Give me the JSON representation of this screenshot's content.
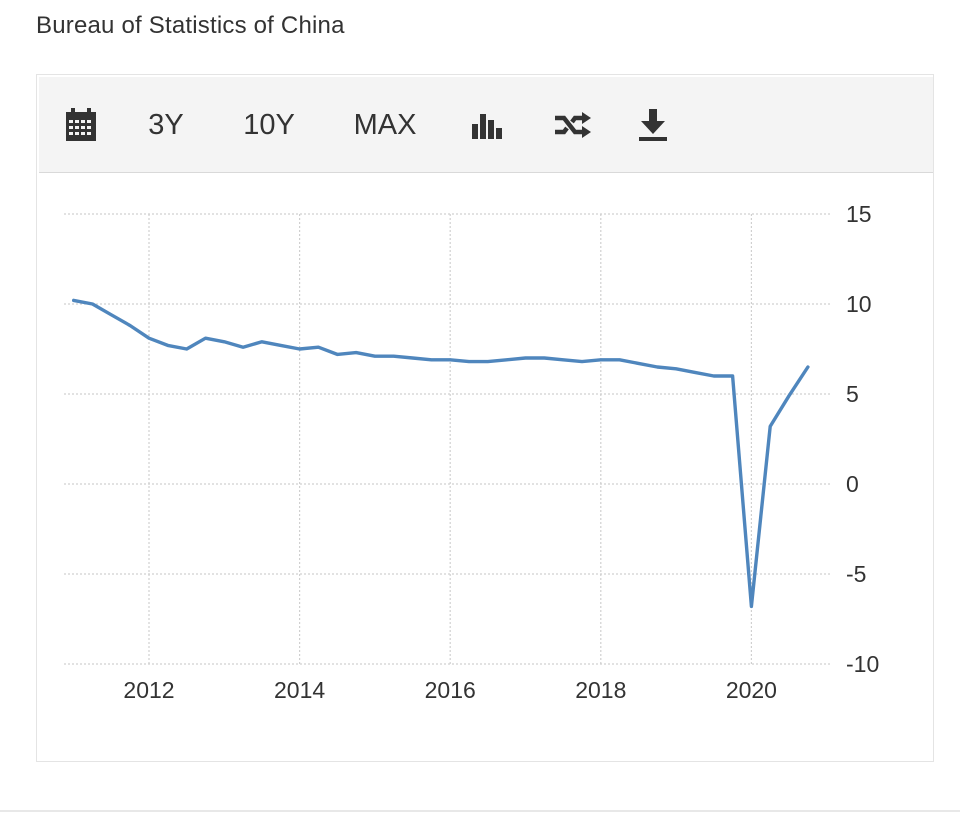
{
  "source": "Bureau of Statistics of China",
  "toolbar": {
    "items": [
      {
        "name": "calendar-icon",
        "type": "icon"
      },
      {
        "name": "range-3y",
        "label": "3Y"
      },
      {
        "name": "range-10y",
        "label": "10Y"
      },
      {
        "name": "range-max",
        "label": "MAX"
      },
      {
        "name": "bar-chart-icon",
        "type": "icon"
      },
      {
        "name": "shuffle-icon",
        "type": "icon"
      },
      {
        "name": "download-icon",
        "type": "icon"
      }
    ]
  },
  "colors": {
    "line": "#4f86bd",
    "grid": "#d0d0d0",
    "toolbar_bg": "#f4f4f4"
  },
  "chart_data": {
    "type": "line",
    "title": "",
    "xlabel": "",
    "ylabel": "",
    "ylim": [
      -10,
      15
    ],
    "yticks": [
      15,
      10,
      5,
      0,
      -5,
      -10
    ],
    "xticks": [
      "2012",
      "2014",
      "2016",
      "2018",
      "2020"
    ],
    "grid": true,
    "y_axis_position": "right",
    "series": [
      {
        "values": [
          {
            "x": "2011-01",
            "y": 10.2
          },
          {
            "x": "2011-04",
            "y": 10.0
          },
          {
            "x": "2011-07",
            "y": 9.4
          },
          {
            "x": "2011-10",
            "y": 8.8
          },
          {
            "x": "2012-01",
            "y": 8.1
          },
          {
            "x": "2012-04",
            "y": 7.7
          },
          {
            "x": "2012-07",
            "y": 7.5
          },
          {
            "x": "2012-10",
            "y": 8.1
          },
          {
            "x": "2013-01",
            "y": 7.9
          },
          {
            "x": "2013-04",
            "y": 7.6
          },
          {
            "x": "2013-07",
            "y": 7.9
          },
          {
            "x": "2013-10",
            "y": 7.7
          },
          {
            "x": "2014-01",
            "y": 7.5
          },
          {
            "x": "2014-04",
            "y": 7.6
          },
          {
            "x": "2014-07",
            "y": 7.2
          },
          {
            "x": "2014-10",
            "y": 7.3
          },
          {
            "x": "2015-01",
            "y": 7.1
          },
          {
            "x": "2015-04",
            "y": 7.1
          },
          {
            "x": "2015-07",
            "y": 7.0
          },
          {
            "x": "2015-10",
            "y": 6.9
          },
          {
            "x": "2016-01",
            "y": 6.9
          },
          {
            "x": "2016-04",
            "y": 6.8
          },
          {
            "x": "2016-07",
            "y": 6.8
          },
          {
            "x": "2016-10",
            "y": 6.9
          },
          {
            "x": "2017-01",
            "y": 7.0
          },
          {
            "x": "2017-04",
            "y": 7.0
          },
          {
            "x": "2017-07",
            "y": 6.9
          },
          {
            "x": "2017-10",
            "y": 6.8
          },
          {
            "x": "2018-01",
            "y": 6.9
          },
          {
            "x": "2018-04",
            "y": 6.9
          },
          {
            "x": "2018-07",
            "y": 6.7
          },
          {
            "x": "2018-10",
            "y": 6.5
          },
          {
            "x": "2019-01",
            "y": 6.4
          },
          {
            "x": "2019-04",
            "y": 6.2
          },
          {
            "x": "2019-07",
            "y": 6.0
          },
          {
            "x": "2019-10",
            "y": 6.0
          },
          {
            "x": "2020-01",
            "y": -6.8
          },
          {
            "x": "2020-04",
            "y": 3.2
          },
          {
            "x": "2020-07",
            "y": 4.9
          },
          {
            "x": "2020-10",
            "y": 6.5
          }
        ]
      }
    ]
  }
}
